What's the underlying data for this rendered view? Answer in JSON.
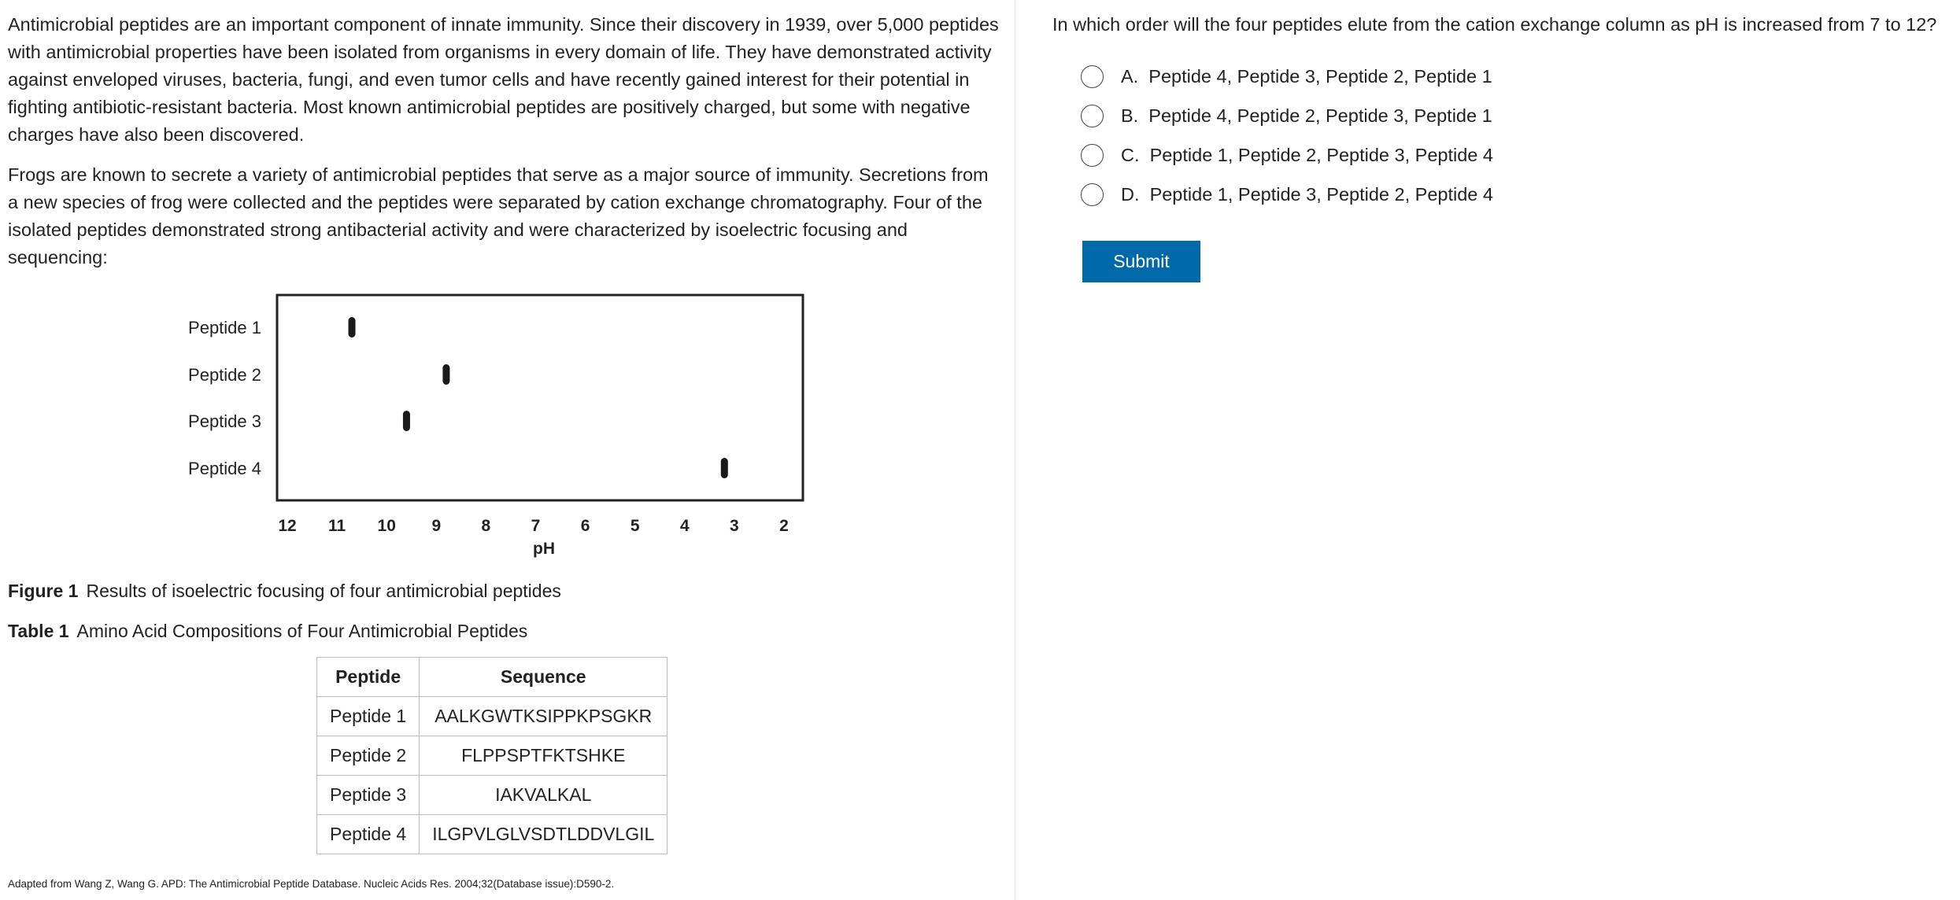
{
  "passage": {
    "paragraphs": [
      "Antimicrobial peptides are an important component of innate immunity.  Since their discovery in 1939, over 5,000 peptides with antimicrobial properties have been isolated from organisms in every domain of life.  They have demonstrated activity against enveloped viruses, bacteria, fungi, and even tumor cells and have recently gained interest for their potential in fighting antibiotic-resistant bacteria.  Most known antimicrobial peptides are positively charged, but some with negative charges have also been discovered.",
      "Frogs are known to secrete a variety of antimicrobial peptides that serve as a major source of immunity.  Secretions from a new species of frog were collected and the peptides were separated by cation exchange chromatography.  Four of the isolated peptides demonstrated strong antibacterial activity and were characterized by isoelectric focusing and sequencing:"
    ],
    "figure_caption_label": "Figure 1",
    "figure_caption": "Results of isoelectric focusing of four antimicrobial peptides",
    "table_caption_label": "Table 1",
    "table_caption": "Amino Acid Compositions of Four Antimicrobial Peptides",
    "table": {
      "headers": [
        "Peptide",
        "Sequence"
      ],
      "rows": [
        [
          "Peptide 1",
          "AALKGWTKSIPPKPSGKR"
        ],
        [
          "Peptide 2",
          "FLPPSPTFKTSHKE"
        ],
        [
          "Peptide 3",
          "IAKVALKAL"
        ],
        [
          "Peptide 4",
          "ILGPVLGLVSDTLDDVLGIL"
        ]
      ]
    },
    "footnote": "Adapted from Wang Z, Wang G. APD: The Antimicrobial Peptide Database. Nucleic Acids Res. 2004;32(Database issue):D590-2."
  },
  "chart_data": {
    "type": "scatter",
    "xlabel": "pH",
    "xlim": [
      12,
      2
    ],
    "x_reversed": true,
    "xticks": [
      "12",
      "11",
      "10",
      "9",
      "8",
      "7",
      "6",
      "5",
      "4",
      "3",
      "2"
    ],
    "categories": [
      "Peptide 1",
      "Peptide 2",
      "Peptide 3",
      "Peptide 4"
    ],
    "values": [
      10.7,
      8.8,
      9.6,
      3.2
    ],
    "grid": false,
    "mark_color": "#1a1a1a"
  },
  "question": {
    "text": "In which order will the four peptides elute from the cation exchange column as pH is increased from 7 to 12?",
    "options": [
      {
        "letter": "A.",
        "label": "Peptide 4, Peptide 3, Peptide 2, Peptide 1"
      },
      {
        "letter": "B.",
        "label": "Peptide 4, Peptide 2, Peptide 3, Peptide 1"
      },
      {
        "letter": "C.",
        "label": "Peptide 1, Peptide 2, Peptide 3, Peptide 4"
      },
      {
        "letter": "D.",
        "label": "Peptide 1, Peptide 3, Peptide 2, Peptide 4"
      }
    ],
    "submit_label": "Submit",
    "accent": "#0069a9"
  }
}
